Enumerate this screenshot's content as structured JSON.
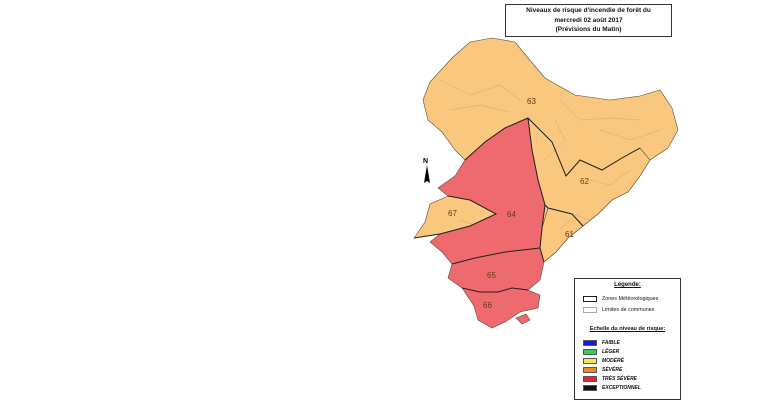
{
  "title": {
    "line1": "Niveaux de risque d'incendie de forêt du",
    "line2": "mercredi 02 août 2017",
    "line3": "(Prévisions du Matin)"
  },
  "north_symbol": "N",
  "zones": [
    {
      "id": "63",
      "level": "modere",
      "color": "#f9c77e"
    },
    {
      "id": "62",
      "level": "modere",
      "color": "#f9c77e"
    },
    {
      "id": "61",
      "level": "modere",
      "color": "#f9c77e"
    },
    {
      "id": "67",
      "level": "modere",
      "color": "#f9c77e"
    },
    {
      "id": "64",
      "level": "tres_severe",
      "color": "#ef6a6e"
    },
    {
      "id": "65",
      "level": "tres_severe",
      "color": "#ef6a6e"
    },
    {
      "id": "66",
      "level": "tres_severe",
      "color": "#ef6a6e"
    }
  ],
  "legend": {
    "title": "Légende:",
    "zones_label": "Zones Météorologiques",
    "communes_label": "Limites de communes",
    "scale_title": "Echelle du niveau de risque:",
    "scale": [
      {
        "label": "FAIBLE",
        "color": "#1a1adc"
      },
      {
        "label": "LÉGER",
        "color": "#33cc55"
      },
      {
        "label": "MODÉRÉ",
        "color": "#f2e94a"
      },
      {
        "label": "SÉVÈRE",
        "color": "#f08a1c"
      },
      {
        "label": "TRÈS SÉVÈRE",
        "color": "#e8262a"
      },
      {
        "label": "EXCEPTIONNEL",
        "color": "#111111"
      }
    ]
  }
}
